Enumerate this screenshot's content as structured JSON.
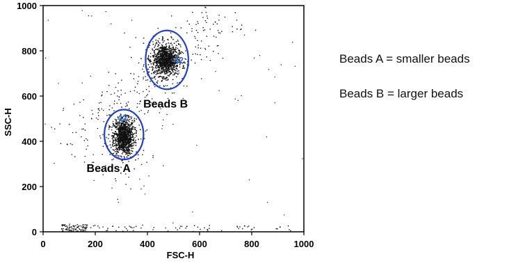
{
  "chart_data": {
    "type": "scatter",
    "xlabel": "FSC-H",
    "ylabel": "SSC-H",
    "xlim": [
      0,
      1000
    ],
    "ylim": [
      0,
      1000
    ],
    "x_ticks": [
      "0",
      "200",
      "400",
      "600",
      "800",
      "1000"
    ],
    "y_ticks": [
      "0",
      "200",
      "400",
      "600",
      "800",
      "1000"
    ],
    "grid": false,
    "gate_color": "#1f3fd6",
    "clusters": [
      {
        "name": "Beads A",
        "center_x": 310,
        "center_y": 420,
        "spread_x": 20,
        "spread_y": 40,
        "gate_count": "42"
      },
      {
        "name": "Beads B",
        "center_x": 470,
        "center_y": 760,
        "spread_x": 25,
        "spread_y": 35,
        "gate_count": "42"
      }
    ],
    "gates": [
      {
        "cluster": "Beads A",
        "center_x": 310,
        "center_y": 430,
        "radius_x": 75,
        "radius_y": 110
      },
      {
        "cluster": "Beads B",
        "center_x": 475,
        "center_y": 760,
        "radius_x": 82,
        "radius_y": 130
      }
    ]
  },
  "notes": [
    "Beads A = smaller beads",
    "Beads B = larger beads"
  ]
}
